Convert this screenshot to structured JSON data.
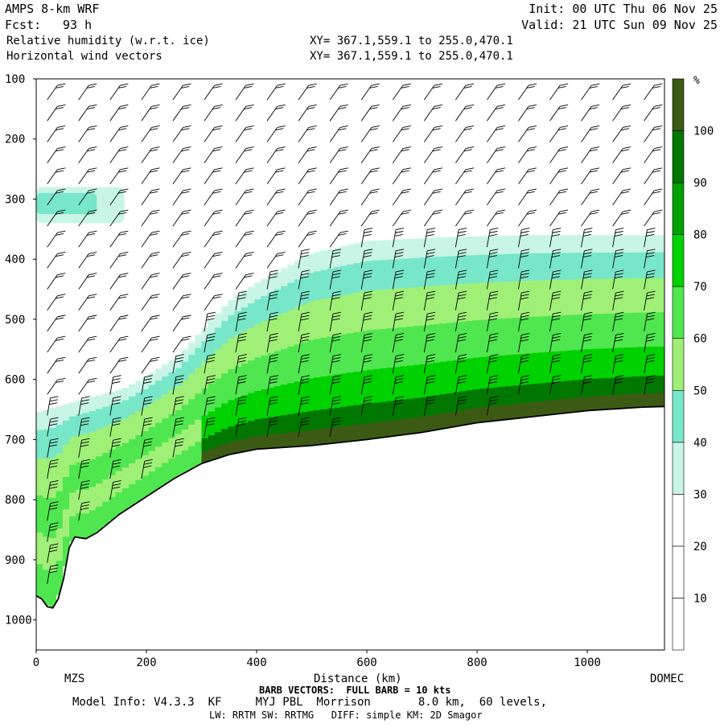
{
  "header": {
    "model": "AMPS 8-km WRF",
    "fcst_label": "Fcst:",
    "fcst_value": "93 h",
    "init": "Init: 00 UTC Thu 06 Nov 25",
    "valid": "Valid: 21 UTC Sun 09 Nov 25",
    "field1": "Relative humidity (w.r.t. ice)",
    "field2": "Horizontal wind vectors",
    "xy1": "XY= 367.1,559.1 to 255.0,470.1",
    "xy2": "XY= 367.1,559.1 to 255.0,470.1"
  },
  "footer": {
    "barb_note": "BARB VECTORS:  FULL BARB = 10 kts",
    "model_info": "Model Info: V4.3.3  KF     MYJ PBL  Morrison       8.0 km,  60 levels,",
    "physics": "LW: RRTM SW: RRTMG   DIFF: simple KM: 2D Smagor"
  },
  "chart_data": {
    "type": "heatmap",
    "title": "Relative humidity (w.r.t. ice)",
    "xlabel": "Distance (km)",
    "ylabel": "",
    "xlim": [
      0,
      1140
    ],
    "ylim": [
      1050,
      100
    ],
    "x_ticks": [
      0,
      200,
      400,
      600,
      800,
      1000
    ],
    "y_ticks": [
      100,
      200,
      300,
      400,
      500,
      600,
      700,
      800,
      900,
      1000
    ],
    "x_endpoint_labels": {
      "left": "MZS",
      "right": "DOMEC"
    },
    "colorbar": {
      "unit": "%",
      "levels": [
        10,
        20,
        30,
        40,
        50,
        60,
        70,
        80,
        90,
        100
      ],
      "colors": [
        "#ffffff",
        "#ffffff",
        "#ffffff",
        "#c8f5e6",
        "#78e6c8",
        "#a0f078",
        "#50e650",
        "#00d200",
        "#00a000",
        "#007800",
        "#3c5a14"
      ]
    },
    "terrain_pressure": [
      [
        0,
        960
      ],
      [
        10,
        965
      ],
      [
        20,
        978
      ],
      [
        30,
        980
      ],
      [
        40,
        965
      ],
      [
        50,
        930
      ],
      [
        60,
        880
      ],
      [
        70,
        862
      ],
      [
        90,
        865
      ],
      [
        110,
        855
      ],
      [
        150,
        825
      ],
      [
        200,
        795
      ],
      [
        250,
        765
      ],
      [
        300,
        740
      ],
      [
        350,
        725
      ],
      [
        400,
        716
      ],
      [
        500,
        710
      ],
      [
        600,
        700
      ],
      [
        700,
        688
      ],
      [
        800,
        672
      ],
      [
        900,
        662
      ],
      [
        1000,
        652
      ],
      [
        1100,
        646
      ],
      [
        1140,
        645
      ]
    ],
    "moist_top_pressure": [
      [
        0,
        655
      ],
      [
        60,
        640
      ],
      [
        100,
        630
      ],
      [
        160,
        615
      ],
      [
        200,
        595
      ],
      [
        260,
        560
      ],
      [
        300,
        520
      ],
      [
        350,
        470
      ],
      [
        400,
        440
      ],
      [
        500,
        390
      ],
      [
        600,
        370
      ],
      [
        700,
        365
      ],
      [
        800,
        362
      ],
      [
        900,
        360
      ],
      [
        1000,
        360
      ],
      [
        1140,
        360
      ]
    ],
    "upper_moist_patch": {
      "x_range": [
        0,
        160
      ],
      "pressure_range": [
        280,
        340
      ],
      "rh_percent": 45
    },
    "barb_note": "FULL BARB = 10 kts"
  }
}
